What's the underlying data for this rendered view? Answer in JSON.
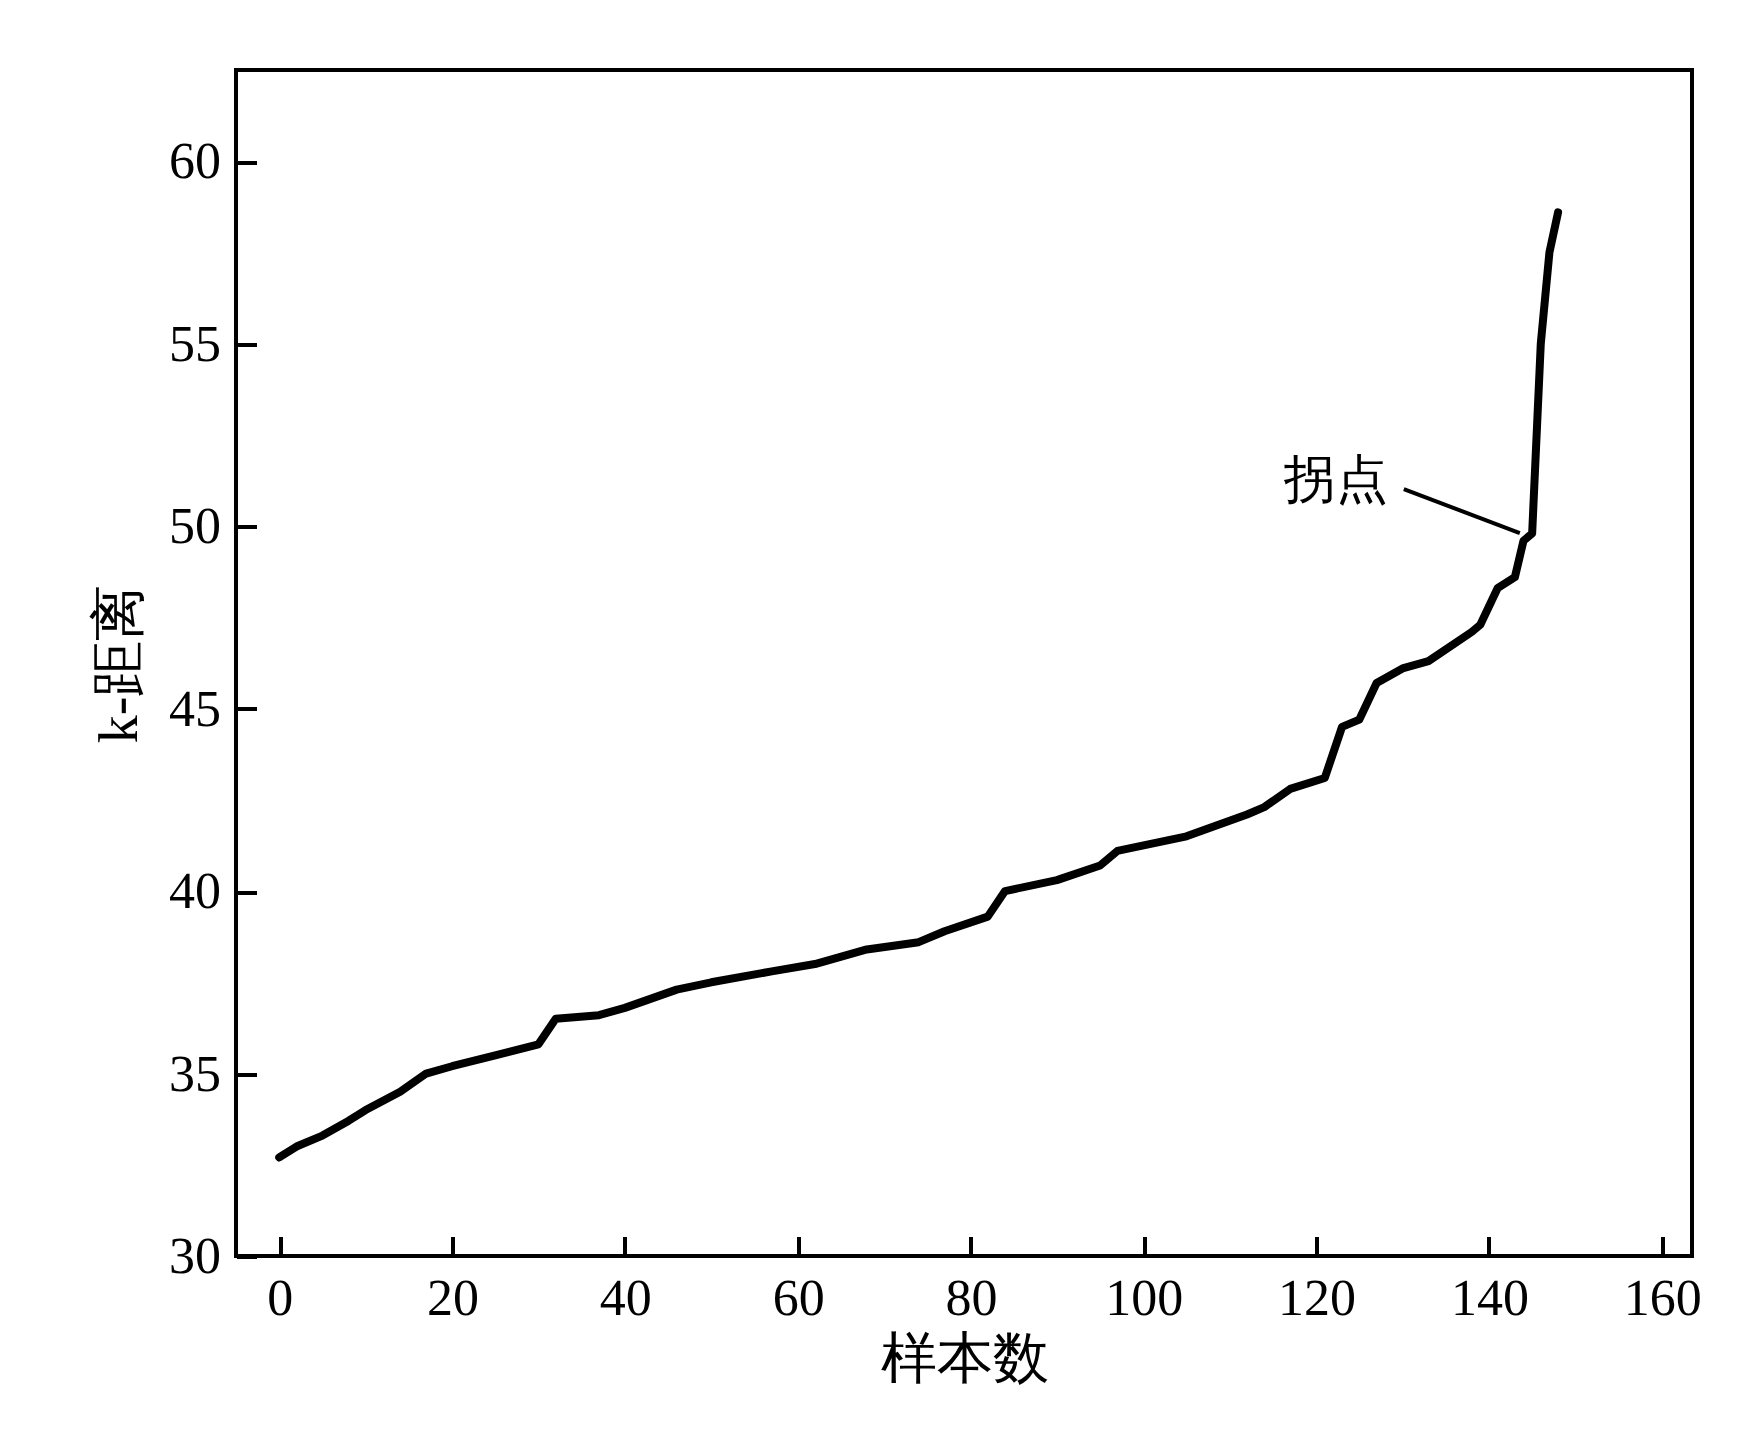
{
  "chart_data": {
    "type": "line",
    "xlabel": "样本数",
    "ylabel": "k-距离",
    "x": [
      0,
      2,
      5,
      8,
      10,
      14,
      17,
      20,
      25,
      30,
      32,
      37,
      40,
      46,
      50,
      57,
      62,
      68,
      74,
      77,
      82,
      84,
      90,
      95,
      97,
      105,
      112,
      114,
      117,
      121,
      123,
      125,
      127,
      130,
      133,
      138,
      139,
      141,
      143,
      144,
      145,
      146,
      147,
      148
    ],
    "series": [
      {
        "color": "#000000",
        "values": [
          32.7,
          33.0,
          33.3,
          33.7,
          34.0,
          34.5,
          35.0,
          35.2,
          35.5,
          35.8,
          36.5,
          36.6,
          36.8,
          37.3,
          37.5,
          37.8,
          38.0,
          38.4,
          38.6,
          38.9,
          39.3,
          40.0,
          40.3,
          40.7,
          41.1,
          41.5,
          42.1,
          42.3,
          42.8,
          43.1,
          44.5,
          44.7,
          45.7,
          46.1,
          46.3,
          47.1,
          47.3,
          48.3,
          48.6,
          49.6,
          49.8,
          55.0,
          57.5,
          58.6
        ]
      }
    ],
    "xlim": [
      -5,
      163.5
    ],
    "xticks": [
      0,
      20,
      40,
      60,
      80,
      100,
      120,
      140,
      160
    ],
    "ylim": [
      30,
      62.5
    ],
    "yticks": [
      30,
      35,
      40,
      45,
      50,
      55,
      60
    ],
    "annotations": [
      {
        "text": "拐点",
        "x": 144.5,
        "y": 49.7
      }
    ],
    "grid": false,
    "marker": "none",
    "line_style": "solid",
    "legend": false
  }
}
